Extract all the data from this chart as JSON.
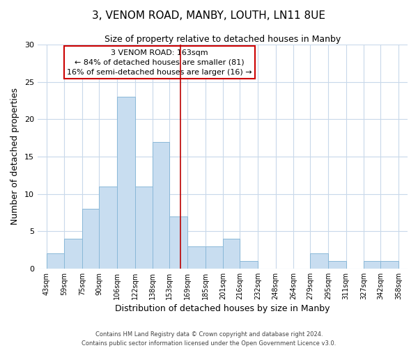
{
  "title": "3, VENOM ROAD, MANBY, LOUTH, LN11 8UE",
  "subtitle": "Size of property relative to detached houses in Manby",
  "xlabel": "Distribution of detached houses by size in Manby",
  "ylabel": "Number of detached properties",
  "bar_color": "#c8ddf0",
  "bar_edge_color": "#8ab8d8",
  "grid_color": "#c8d8ea",
  "vline_x": 163,
  "vline_color": "#bb0000",
  "annotation_title": "3 VENOM ROAD: 163sqm",
  "annotation_line1": "← 84% of detached houses are smaller (81)",
  "annotation_line2": "16% of semi-detached houses are larger (16) →",
  "bin_edges": [
    43,
    59,
    75,
    90,
    106,
    122,
    138,
    153,
    169,
    185,
    201,
    216,
    232,
    248,
    264,
    279,
    295,
    311,
    327,
    342,
    358
  ],
  "bin_counts": [
    2,
    4,
    8,
    11,
    23,
    11,
    17,
    7,
    3,
    3,
    4,
    1,
    0,
    0,
    0,
    2,
    1,
    0,
    1,
    1
  ],
  "ylim": [
    0,
    30
  ],
  "yticks": [
    0,
    5,
    10,
    15,
    20,
    25,
    30
  ],
  "footer_line1": "Contains HM Land Registry data © Crown copyright and database right 2024.",
  "footer_line2": "Contains public sector information licensed under the Open Government Licence v3.0."
}
